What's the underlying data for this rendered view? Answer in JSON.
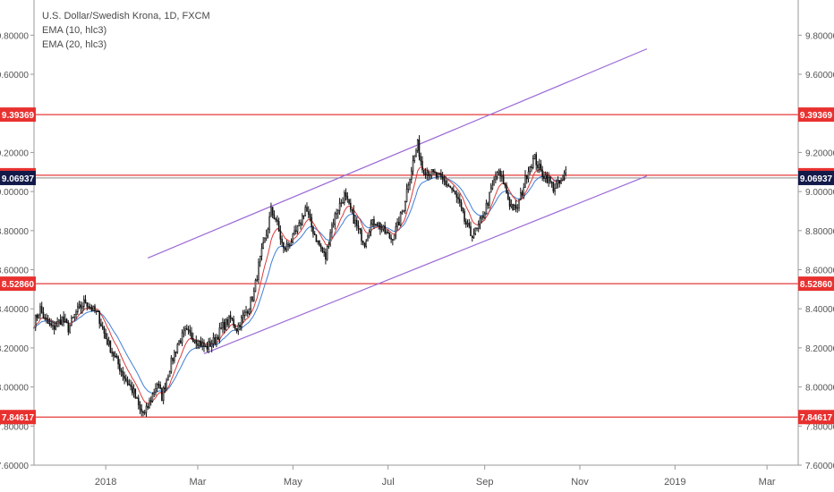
{
  "chart_data": {
    "type": "candlestick",
    "title": "U.S. Dollar/Swedish Krona, 1D, FXCM",
    "indicators": [
      {
        "name": "EMA (10, hlc3)",
        "color": "#d93c3c"
      },
      {
        "name": "EMA (20, hlc3)",
        "color": "#3f7fd6"
      }
    ],
    "y_ticks": [
      "7.60000",
      "7.80000",
      "8.00000",
      "8.20000",
      "8.40000",
      "8.60000",
      "8.80000",
      "9.00000",
      "9.20000",
      "9.40000",
      "9.60000",
      "9.80000"
    ],
    "ylim": [
      7.6,
      9.98
    ],
    "x_ticks": [
      {
        "label": "2018",
        "t": 46
      },
      {
        "label": "Mar",
        "t": 105
      },
      {
        "label": "May",
        "t": 166
      },
      {
        "label": "Jul",
        "t": 227
      },
      {
        "label": "Sep",
        "t": 289
      },
      {
        "label": "Nov",
        "t": 350
      },
      {
        "label": "2019",
        "t": 411
      },
      {
        "label": "Mar",
        "t": 470
      }
    ],
    "xlim": [
      0,
      490
    ],
    "price_path": [
      [
        0,
        8.33
      ],
      [
        4,
        8.4
      ],
      [
        7,
        8.34
      ],
      [
        12,
        8.3
      ],
      [
        18,
        8.35
      ],
      [
        22,
        8.3
      ],
      [
        27,
        8.38
      ],
      [
        33,
        8.44
      ],
      [
        37,
        8.4
      ],
      [
        41,
        8.37
      ],
      [
        46,
        8.25
      ],
      [
        52,
        8.15
      ],
      [
        58,
        8.05
      ],
      [
        64,
        7.97
      ],
      [
        68,
        7.88
      ],
      [
        71,
        7.86
      ],
      [
        74,
        7.92
      ],
      [
        79,
        8.02
      ],
      [
        82,
        7.95
      ],
      [
        87,
        8.1
      ],
      [
        92,
        8.22
      ],
      [
        97,
        8.28
      ],
      [
        103,
        8.25
      ],
      [
        110,
        8.2
      ],
      [
        116,
        8.24
      ],
      [
        121,
        8.31
      ],
      [
        126,
        8.35
      ],
      [
        130,
        8.3
      ],
      [
        137,
        8.4
      ],
      [
        141,
        8.48
      ],
      [
        144,
        8.62
      ],
      [
        149,
        8.78
      ],
      [
        152,
        8.9
      ],
      [
        155,
        8.86
      ],
      [
        160,
        8.7
      ],
      [
        166,
        8.76
      ],
      [
        170,
        8.82
      ],
      [
        174,
        8.92
      ],
      [
        178,
        8.82
      ],
      [
        182,
        8.74
      ],
      [
        187,
        8.66
      ],
      [
        190,
        8.8
      ],
      [
        194,
        8.9
      ],
      [
        199,
        8.98
      ],
      [
        203,
        8.9
      ],
      [
        208,
        8.8
      ],
      [
        212,
        8.74
      ],
      [
        215,
        8.82
      ],
      [
        219,
        8.85
      ],
      [
        224,
        8.8
      ],
      [
        229,
        8.76
      ],
      [
        233,
        8.82
      ],
      [
        237,
        8.92
      ],
      [
        240,
        9.05
      ],
      [
        243,
        9.15
      ],
      [
        246,
        9.24
      ],
      [
        249,
        9.12
      ],
      [
        253,
        9.1
      ],
      [
        258,
        9.08
      ],
      [
        263,
        9.05
      ],
      [
        267,
        9.02
      ],
      [
        272,
        8.95
      ],
      [
        276,
        8.85
      ],
      [
        280,
        8.78
      ],
      [
        284,
        8.8
      ],
      [
        289,
        8.9
      ],
      [
        293,
        9.0
      ],
      [
        297,
        9.1
      ],
      [
        301,
        9.05
      ],
      [
        305,
        8.94
      ],
      [
        309,
        8.9
      ],
      [
        313,
        9.0
      ],
      [
        317,
        9.12
      ],
      [
        321,
        9.17
      ],
      [
        325,
        9.1
      ],
      [
        329,
        9.07
      ],
      [
        333,
        9.02
      ],
      [
        337,
        9.04
      ],
      [
        341,
        9.1
      ]
    ],
    "horizontal_levels": [
      {
        "value": 9.39369,
        "label": "9.39369"
      },
      {
        "value": 9.0835,
        "label": "9.08350"
      },
      {
        "value": 8.5286,
        "label": "8.52860"
      },
      {
        "value": 7.84617,
        "label": "7.84617"
      }
    ],
    "last_price": {
      "value": 9.06937,
      "label": "9.06937"
    },
    "trend_channel": [
      {
        "from": [
          73,
          8.66
        ],
        "to": [
          393,
          9.73
        ]
      },
      {
        "from": [
          109,
          8.17
        ],
        "to": [
          393,
          9.08
        ]
      }
    ],
    "colors": {
      "candle": "#111111",
      "level": "#e53a3a",
      "level_label_bg": "#e8312f",
      "last_price_bg": "#131a4a",
      "channel": "#9b6ad6",
      "axis": "#555555",
      "axis_text": "#555555"
    }
  }
}
